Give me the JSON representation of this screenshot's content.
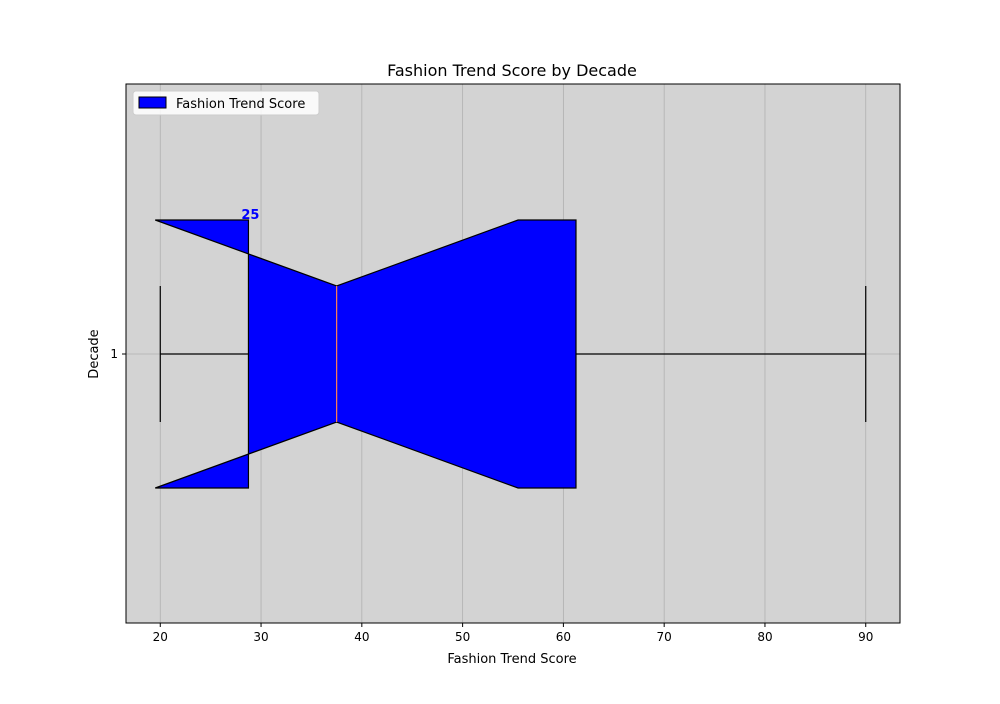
{
  "chart_data": {
    "type": "boxplot",
    "orientation": "horizontal",
    "notch": true,
    "title": "Fashion Trend Score by Decade",
    "xlabel": "Fashion Trend Score",
    "ylabel": "Decade",
    "xlim": [
      16.6,
      93.4
    ],
    "xticks": [
      20,
      30,
      40,
      50,
      60,
      70,
      80,
      90
    ],
    "yticks": [
      1
    ],
    "grid": true,
    "legend": {
      "position": "upper-left",
      "entries": [
        "Fashion Trend Score"
      ]
    },
    "series": [
      {
        "name": "Fashion Trend Score",
        "category": "1",
        "min": 20,
        "q1": 28.75,
        "median": 37.5,
        "q3": 61.25,
        "max": 90,
        "notch_low": 19.5,
        "notch_high": 55.5,
        "annotation": "25"
      }
    ],
    "colors": {
      "box_fill": "#0000ff",
      "box_edge": "#000000",
      "median_line": "#ff7f50",
      "axes_background": "#d3d3d3",
      "grid": "#b0b0b0",
      "annotation": "#0000ff"
    }
  }
}
